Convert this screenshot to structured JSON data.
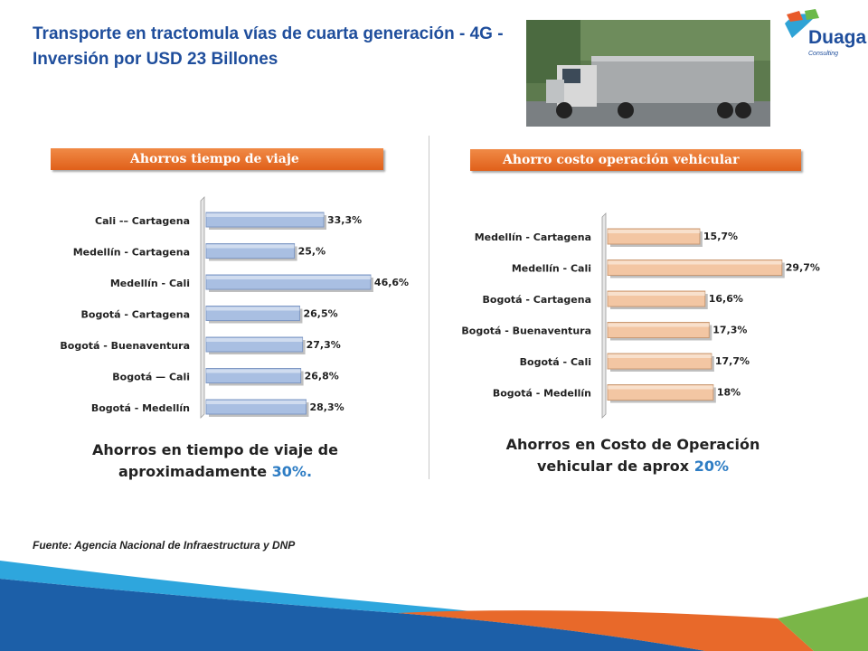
{
  "title": "Transporte en tractomula vías de cuarta generación - 4G - Inversión por USD 23 Billones",
  "logo": {
    "name": "Duaga",
    "sub": "Consulting"
  },
  "source": "Fuente: Agencia Nacional de Infraestructura y DNP",
  "colors": {
    "title": "#1f4e9c",
    "header_orange": "#e8691f",
    "bar_blue": "#a9bfe2",
    "bar_peach": "#f3c6a3",
    "accent_blue": "#2e7dc4"
  },
  "chart_data": [
    {
      "type": "bar",
      "orientation": "horizontal",
      "title": "Ahorros tiempo de viaje",
      "categories": [
        "Cali -– Cartagena",
        "Medellín  - Cartagena",
        "Medellín  - Cali",
        "Bogotá  - Cartagena",
        "Bogotá  - Buenaventura",
        "Bogotá — Cali",
        "Bogotá - Medellín"
      ],
      "values": [
        33.3,
        25,
        46.6,
        26.5,
        27.3,
        26.8,
        28.3
      ],
      "data_labels": [
        "33,3%",
        "25,%",
        "46,6%",
        "26,5%",
        "27,3%",
        "26,8%",
        "28,3%"
      ],
      "xlim": [
        0,
        50
      ],
      "grid": false,
      "summary_prefix": "Ahorros en tiempo de viaje de",
      "summary_mid": "aproximadamente",
      "summary_value": "30%."
    },
    {
      "type": "bar",
      "orientation": "horizontal",
      "title": "Ahorro costo operación vehicular",
      "categories": [
        "Medellín  - Cartagena",
        "Medellín  - Cali",
        "Bogotá  - Cartagena",
        "Bogotá  - Buenaventura",
        "Bogotá - Cali",
        "Bogotá - Medellín"
      ],
      "values": [
        15.7,
        29.7,
        16.6,
        17.3,
        17.7,
        18
      ],
      "data_labels": [
        "15,7%",
        "29,7%",
        "16,6%",
        "17,3%",
        "17,7%",
        "18%"
      ],
      "xlim": [
        0,
        33
      ],
      "grid": false,
      "summary_prefix": "Ahorros en Costo de Operación",
      "summary_mid": "vehicular de aprox",
      "summary_value": "20%"
    }
  ]
}
